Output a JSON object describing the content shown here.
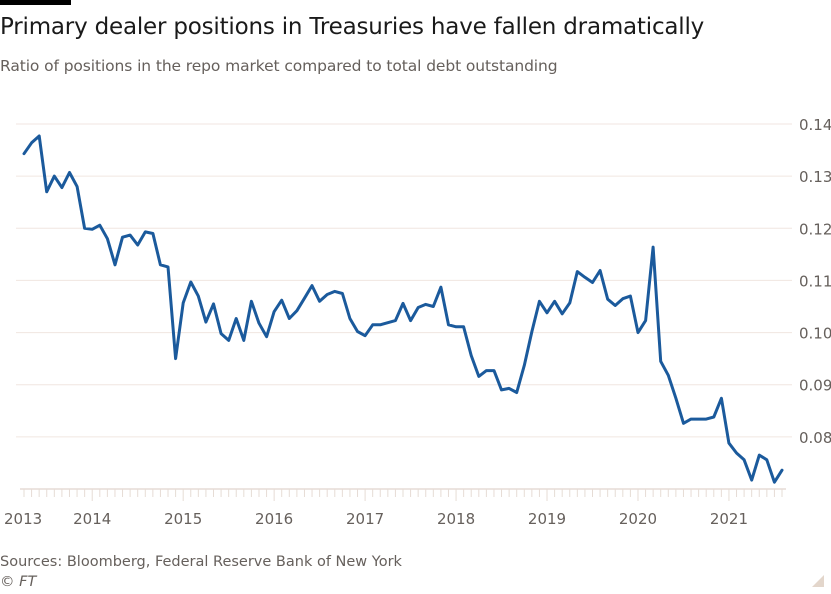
{
  "header": {
    "title": "Primary dealer positions in Treasuries have fallen dramatically",
    "subtitle": "Ratio of positions in the repo market compared to total debt outstanding"
  },
  "footer": {
    "source": "Sources: Bloomberg, Federal Reserve Bank of New York",
    "copyright": "© FT"
  },
  "colors": {
    "line": "#1b5a9c",
    "grid": "#f0e6e0",
    "tick": "#e6dcd5",
    "axis_text": "#66605c"
  },
  "chart_data": {
    "type": "line",
    "title": "Primary dealer positions in Treasuries have fallen dramatically",
    "subtitle": "Ratio of positions in the repo market compared to total debt outstanding",
    "xlabel": "",
    "ylabel": "",
    "x_start": "2013-04",
    "x_frequency": "monthly",
    "x_ticks": [
      "2013",
      "2014",
      "2015",
      "2016",
      "2017",
      "2018",
      "2019",
      "2020",
      "2021"
    ],
    "y_ticks": [
      "0.14",
      "0.13",
      "0.12",
      "0.11",
      "0.10",
      "0.09",
      "0.08"
    ],
    "ylim": [
      0.07,
      0.14
    ],
    "y_axis_side": "right",
    "grid": true,
    "series": [
      {
        "name": "Ratio",
        "values": [
          0.1343,
          0.1364,
          0.1377,
          0.127,
          0.13,
          0.1278,
          0.1307,
          0.128,
          0.12,
          0.1198,
          0.1206,
          0.118,
          0.113,
          0.1183,
          0.1187,
          0.1168,
          0.1193,
          0.119,
          0.113,
          0.1126,
          0.095,
          0.1057,
          0.1097,
          0.107,
          0.102,
          0.1055,
          0.0998,
          0.0985,
          0.1027,
          0.0985,
          0.106,
          0.1018,
          0.0992,
          0.104,
          0.1062,
          0.1027,
          0.1042,
          0.1066,
          0.109,
          0.106,
          0.1073,
          0.1079,
          0.1075,
          0.1027,
          0.1002,
          0.0994,
          0.1015,
          0.1015,
          0.1019,
          0.1023,
          0.1056,
          0.1023,
          0.1048,
          0.1054,
          0.105,
          0.1087,
          0.1015,
          0.1011,
          0.1011,
          0.0956,
          0.0916,
          0.0927,
          0.0927,
          0.089,
          0.0893,
          0.0885,
          0.0937,
          0.1002,
          0.106,
          0.1038,
          0.106,
          0.1036,
          0.1057,
          0.1117,
          0.1106,
          0.1096,
          0.1119,
          0.1064,
          0.1052,
          0.1065,
          0.107,
          0.1,
          0.1023,
          0.1164,
          0.0945,
          0.0918,
          0.0874,
          0.0826,
          0.0834,
          0.0834,
          0.0834,
          0.0838,
          0.0874,
          0.0788,
          0.0769,
          0.0756,
          0.0717,
          0.0765,
          0.0756,
          0.0713,
          0.0736
        ]
      }
    ]
  }
}
